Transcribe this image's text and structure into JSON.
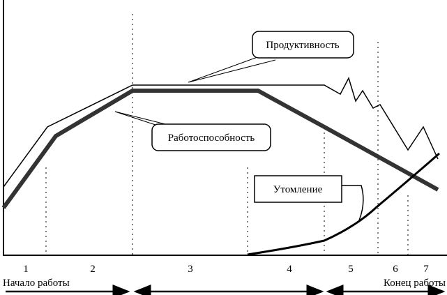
{
  "labels": {
    "productivity": "Продуктивность",
    "work_capacity": "Работоспособность",
    "fatigue": "Утомление"
  },
  "phases": [
    "1",
    "2",
    "3",
    "4",
    "5",
    "6",
    "7"
  ],
  "start": "Начало работы",
  "end": "Конец работы"
}
